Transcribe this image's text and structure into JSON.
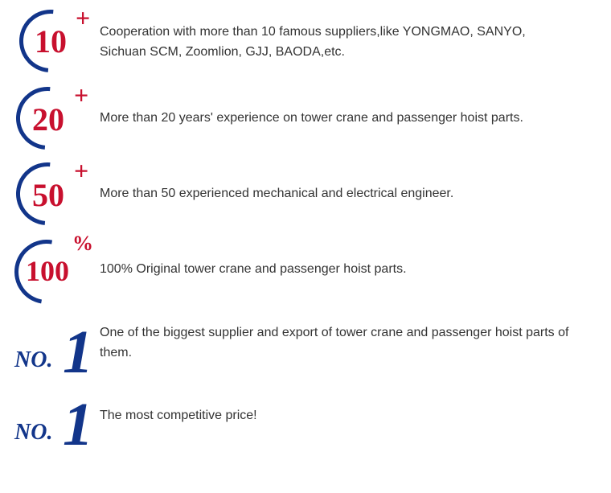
{
  "items": [
    {
      "num": "10",
      "sup": "+",
      "num_color": "#c8102e",
      "sup_color": "#c8102e",
      "arc_color": "#12358a",
      "desc": "Cooperation with more than 10 famous suppliers,like YONGMAO, SANYO, Sichuan SCM, Zoomlion, GJJ, BAODA,etc."
    },
    {
      "num": "20",
      "sup": "+",
      "num_color": "#c8102e",
      "sup_color": "#c8102e",
      "arc_color": "#12358a",
      "desc": "More than 20 years' experience on tower crane and passenger hoist parts."
    },
    {
      "num": "50",
      "sup": "+",
      "num_color": "#c8102e",
      "sup_color": "#c8102e",
      "arc_color": "#12358a",
      "desc": "More than 50 experienced mechanical and electrical engineer."
    },
    {
      "num": "100",
      "sup": "%",
      "num_color": "#c8102e",
      "sup_color": "#c8102e",
      "arc_color": "#12358a",
      "desc": "100% Original tower crane and passenger hoist parts."
    },
    {
      "prefix": "NO.",
      "num": "1",
      "color": "#12358a",
      "desc": "One of the biggest supplier and export of tower crane and passenger hoist parts of them."
    },
    {
      "prefix": "NO.",
      "num": "1",
      "color": "#12358a",
      "desc": "The most competitive price!"
    }
  ],
  "text_color": "#333333",
  "background": "#ffffff",
  "font_size_desc": 16
}
